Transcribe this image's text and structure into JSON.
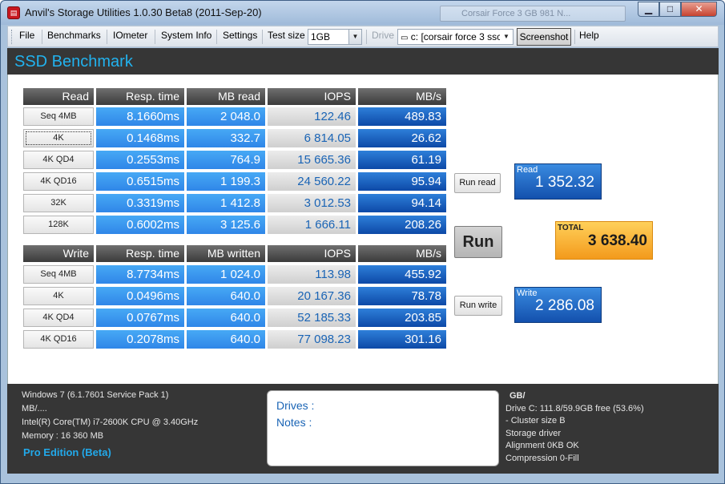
{
  "window": {
    "title": "Anvil's Storage Utilities 1.0.30 Beta8 (2011-Sep-20)",
    "background_tab": "Corsair Force 3 GB 981 N..."
  },
  "menu": {
    "file": "File",
    "benchmarks": "Benchmarks",
    "iometer": "IOmeter",
    "sysinfo": "System Info",
    "settings": "Settings",
    "test_size_label": "Test size",
    "test_size_value": "1GB",
    "drive_label": "Drive",
    "drive_value": "c: [corsair force 3 ssc",
    "screenshot": "Screenshot",
    "help": "Help"
  },
  "header": {
    "title": "SSD Benchmark"
  },
  "read": {
    "headers": [
      "Read",
      "Resp. time",
      "MB read",
      "IOPS",
      "MB/s"
    ],
    "rows": [
      {
        "label": "Seq 4MB",
        "resp": "8.1660ms",
        "mb": "2 048.0",
        "iops": "122.46",
        "mbs": "489.83"
      },
      {
        "label": "4K",
        "resp": "0.1468ms",
        "mb": "332.7",
        "iops": "6 814.05",
        "mbs": "26.62"
      },
      {
        "label": "4K QD4",
        "resp": "0.2553ms",
        "mb": "764.9",
        "iops": "15 665.36",
        "mbs": "61.19"
      },
      {
        "label": "4K QD16",
        "resp": "0.6515ms",
        "mb": "1 199.3",
        "iops": "24 560.22",
        "mbs": "95.94"
      },
      {
        "label": "32K",
        "resp": "0.3319ms",
        "mb": "1 412.8",
        "iops": "3 012.53",
        "mbs": "94.14"
      },
      {
        "label": "128K",
        "resp": "0.6002ms",
        "mb": "3 125.6",
        "iops": "1 666.11",
        "mbs": "208.26"
      }
    ]
  },
  "write": {
    "headers": [
      "Write",
      "Resp. time",
      "MB written",
      "IOPS",
      "MB/s"
    ],
    "rows": [
      {
        "label": "Seq 4MB",
        "resp": "8.7734ms",
        "mb": "1 024.0",
        "iops": "113.98",
        "mbs": "455.92"
      },
      {
        "label": "4K",
        "resp": "0.0496ms",
        "mb": "640.0",
        "iops": "20 167.36",
        "mbs": "78.78"
      },
      {
        "label": "4K QD4",
        "resp": "0.0767ms",
        "mb": "640.0",
        "iops": "52 185.33",
        "mbs": "203.85"
      },
      {
        "label": "4K QD16",
        "resp": "0.2078ms",
        "mb": "640.0",
        "iops": "77 098.23",
        "mbs": "301.16"
      }
    ]
  },
  "controls": {
    "run_read": "Run read",
    "run": "Run",
    "run_write": "Run write"
  },
  "scores": {
    "read_label": "Read",
    "read_value": "1 352.32",
    "total_label": "TOTAL",
    "total_value": "3 638.40",
    "write_label": "Write",
    "write_value": "2 286.08"
  },
  "footer": {
    "os": "Windows 7 (6.1.7601 Service Pack 1)",
    "mb": "MB/....",
    "cpu": "Intel(R) Core(TM) i7-2600K CPU @ 3.40GHz",
    "memory": "Memory : 16 360 MB",
    "edition": "Pro Edition (Beta)",
    "drives_label": "Drives :",
    "notes_label": "Notes :",
    "gb": "GB/",
    "drive_c": "Drive C: 111.8/59.9GB free (53.6%)",
    "cluster": " - Cluster size B",
    "storage_driver": "Storage driver",
    "alignment": "Alignment 0KB OK",
    "compression": "Compression 0-Fill"
  }
}
